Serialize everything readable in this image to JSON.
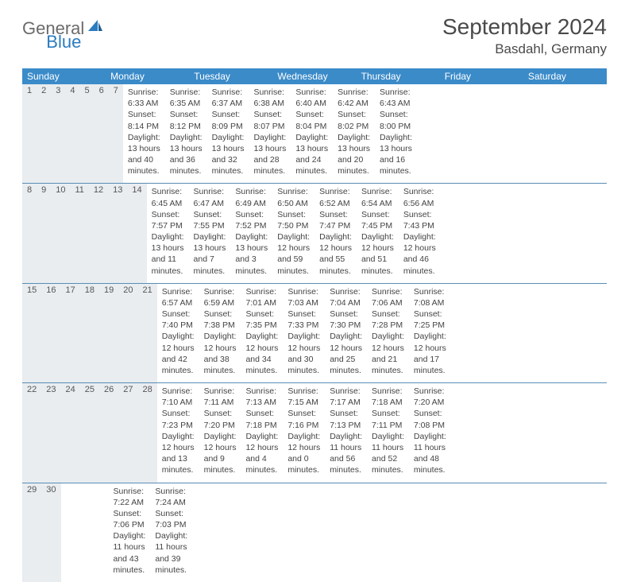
{
  "logo": {
    "text1": "General",
    "text2": "Blue"
  },
  "title": "September 2024",
  "location": "Basdahl, Germany",
  "colors": {
    "header_bg": "#3b8bc9",
    "header_text": "#ffffff",
    "daynum_bg": "#e9edf0",
    "week_border": "#5a8db5",
    "body_text": "#444444",
    "title_text": "#4a4a4a",
    "logo_gray": "#6b6b6b",
    "logo_blue": "#2b7bbf"
  },
  "typography": {
    "title_fontsize": 28,
    "location_fontsize": 17,
    "dayheader_fontsize": 12,
    "daynum_fontsize": 11,
    "body_fontsize": 10.5
  },
  "day_headers": [
    "Sunday",
    "Monday",
    "Tuesday",
    "Wednesday",
    "Thursday",
    "Friday",
    "Saturday"
  ],
  "weeks": [
    [
      {
        "n": "1",
        "sr": "Sunrise: 6:33 AM",
        "ss": "Sunset: 8:14 PM",
        "dl": "Daylight: 13 hours and 40 minutes."
      },
      {
        "n": "2",
        "sr": "Sunrise: 6:35 AM",
        "ss": "Sunset: 8:12 PM",
        "dl": "Daylight: 13 hours and 36 minutes."
      },
      {
        "n": "3",
        "sr": "Sunrise: 6:37 AM",
        "ss": "Sunset: 8:09 PM",
        "dl": "Daylight: 13 hours and 32 minutes."
      },
      {
        "n": "4",
        "sr": "Sunrise: 6:38 AM",
        "ss": "Sunset: 8:07 PM",
        "dl": "Daylight: 13 hours and 28 minutes."
      },
      {
        "n": "5",
        "sr": "Sunrise: 6:40 AM",
        "ss": "Sunset: 8:04 PM",
        "dl": "Daylight: 13 hours and 24 minutes."
      },
      {
        "n": "6",
        "sr": "Sunrise: 6:42 AM",
        "ss": "Sunset: 8:02 PM",
        "dl": "Daylight: 13 hours and 20 minutes."
      },
      {
        "n": "7",
        "sr": "Sunrise: 6:43 AM",
        "ss": "Sunset: 8:00 PM",
        "dl": "Daylight: 13 hours and 16 minutes."
      }
    ],
    [
      {
        "n": "8",
        "sr": "Sunrise: 6:45 AM",
        "ss": "Sunset: 7:57 PM",
        "dl": "Daylight: 13 hours and 11 minutes."
      },
      {
        "n": "9",
        "sr": "Sunrise: 6:47 AM",
        "ss": "Sunset: 7:55 PM",
        "dl": "Daylight: 13 hours and 7 minutes."
      },
      {
        "n": "10",
        "sr": "Sunrise: 6:49 AM",
        "ss": "Sunset: 7:52 PM",
        "dl": "Daylight: 13 hours and 3 minutes."
      },
      {
        "n": "11",
        "sr": "Sunrise: 6:50 AM",
        "ss": "Sunset: 7:50 PM",
        "dl": "Daylight: 12 hours and 59 minutes."
      },
      {
        "n": "12",
        "sr": "Sunrise: 6:52 AM",
        "ss": "Sunset: 7:47 PM",
        "dl": "Daylight: 12 hours and 55 minutes."
      },
      {
        "n": "13",
        "sr": "Sunrise: 6:54 AM",
        "ss": "Sunset: 7:45 PM",
        "dl": "Daylight: 12 hours and 51 minutes."
      },
      {
        "n": "14",
        "sr": "Sunrise: 6:56 AM",
        "ss": "Sunset: 7:43 PM",
        "dl": "Daylight: 12 hours and 46 minutes."
      }
    ],
    [
      {
        "n": "15",
        "sr": "Sunrise: 6:57 AM",
        "ss": "Sunset: 7:40 PM",
        "dl": "Daylight: 12 hours and 42 minutes."
      },
      {
        "n": "16",
        "sr": "Sunrise: 6:59 AM",
        "ss": "Sunset: 7:38 PM",
        "dl": "Daylight: 12 hours and 38 minutes."
      },
      {
        "n": "17",
        "sr": "Sunrise: 7:01 AM",
        "ss": "Sunset: 7:35 PM",
        "dl": "Daylight: 12 hours and 34 minutes."
      },
      {
        "n": "18",
        "sr": "Sunrise: 7:03 AM",
        "ss": "Sunset: 7:33 PM",
        "dl": "Daylight: 12 hours and 30 minutes."
      },
      {
        "n": "19",
        "sr": "Sunrise: 7:04 AM",
        "ss": "Sunset: 7:30 PM",
        "dl": "Daylight: 12 hours and 25 minutes."
      },
      {
        "n": "20",
        "sr": "Sunrise: 7:06 AM",
        "ss": "Sunset: 7:28 PM",
        "dl": "Daylight: 12 hours and 21 minutes."
      },
      {
        "n": "21",
        "sr": "Sunrise: 7:08 AM",
        "ss": "Sunset: 7:25 PM",
        "dl": "Daylight: 12 hours and 17 minutes."
      }
    ],
    [
      {
        "n": "22",
        "sr": "Sunrise: 7:10 AM",
        "ss": "Sunset: 7:23 PM",
        "dl": "Daylight: 12 hours and 13 minutes."
      },
      {
        "n": "23",
        "sr": "Sunrise: 7:11 AM",
        "ss": "Sunset: 7:20 PM",
        "dl": "Daylight: 12 hours and 9 minutes."
      },
      {
        "n": "24",
        "sr": "Sunrise: 7:13 AM",
        "ss": "Sunset: 7:18 PM",
        "dl": "Daylight: 12 hours and 4 minutes."
      },
      {
        "n": "25",
        "sr": "Sunrise: 7:15 AM",
        "ss": "Sunset: 7:16 PM",
        "dl": "Daylight: 12 hours and 0 minutes."
      },
      {
        "n": "26",
        "sr": "Sunrise: 7:17 AM",
        "ss": "Sunset: 7:13 PM",
        "dl": "Daylight: 11 hours and 56 minutes."
      },
      {
        "n": "27",
        "sr": "Sunrise: 7:18 AM",
        "ss": "Sunset: 7:11 PM",
        "dl": "Daylight: 11 hours and 52 minutes."
      },
      {
        "n": "28",
        "sr": "Sunrise: 7:20 AM",
        "ss": "Sunset: 7:08 PM",
        "dl": "Daylight: 11 hours and 48 minutes."
      }
    ],
    [
      {
        "n": "29",
        "sr": "Sunrise: 7:22 AM",
        "ss": "Sunset: 7:06 PM",
        "dl": "Daylight: 11 hours and 43 minutes."
      },
      {
        "n": "30",
        "sr": "Sunrise: 7:24 AM",
        "ss": "Sunset: 7:03 PM",
        "dl": "Daylight: 11 hours and 39 minutes."
      },
      null,
      null,
      null,
      null,
      null
    ]
  ]
}
